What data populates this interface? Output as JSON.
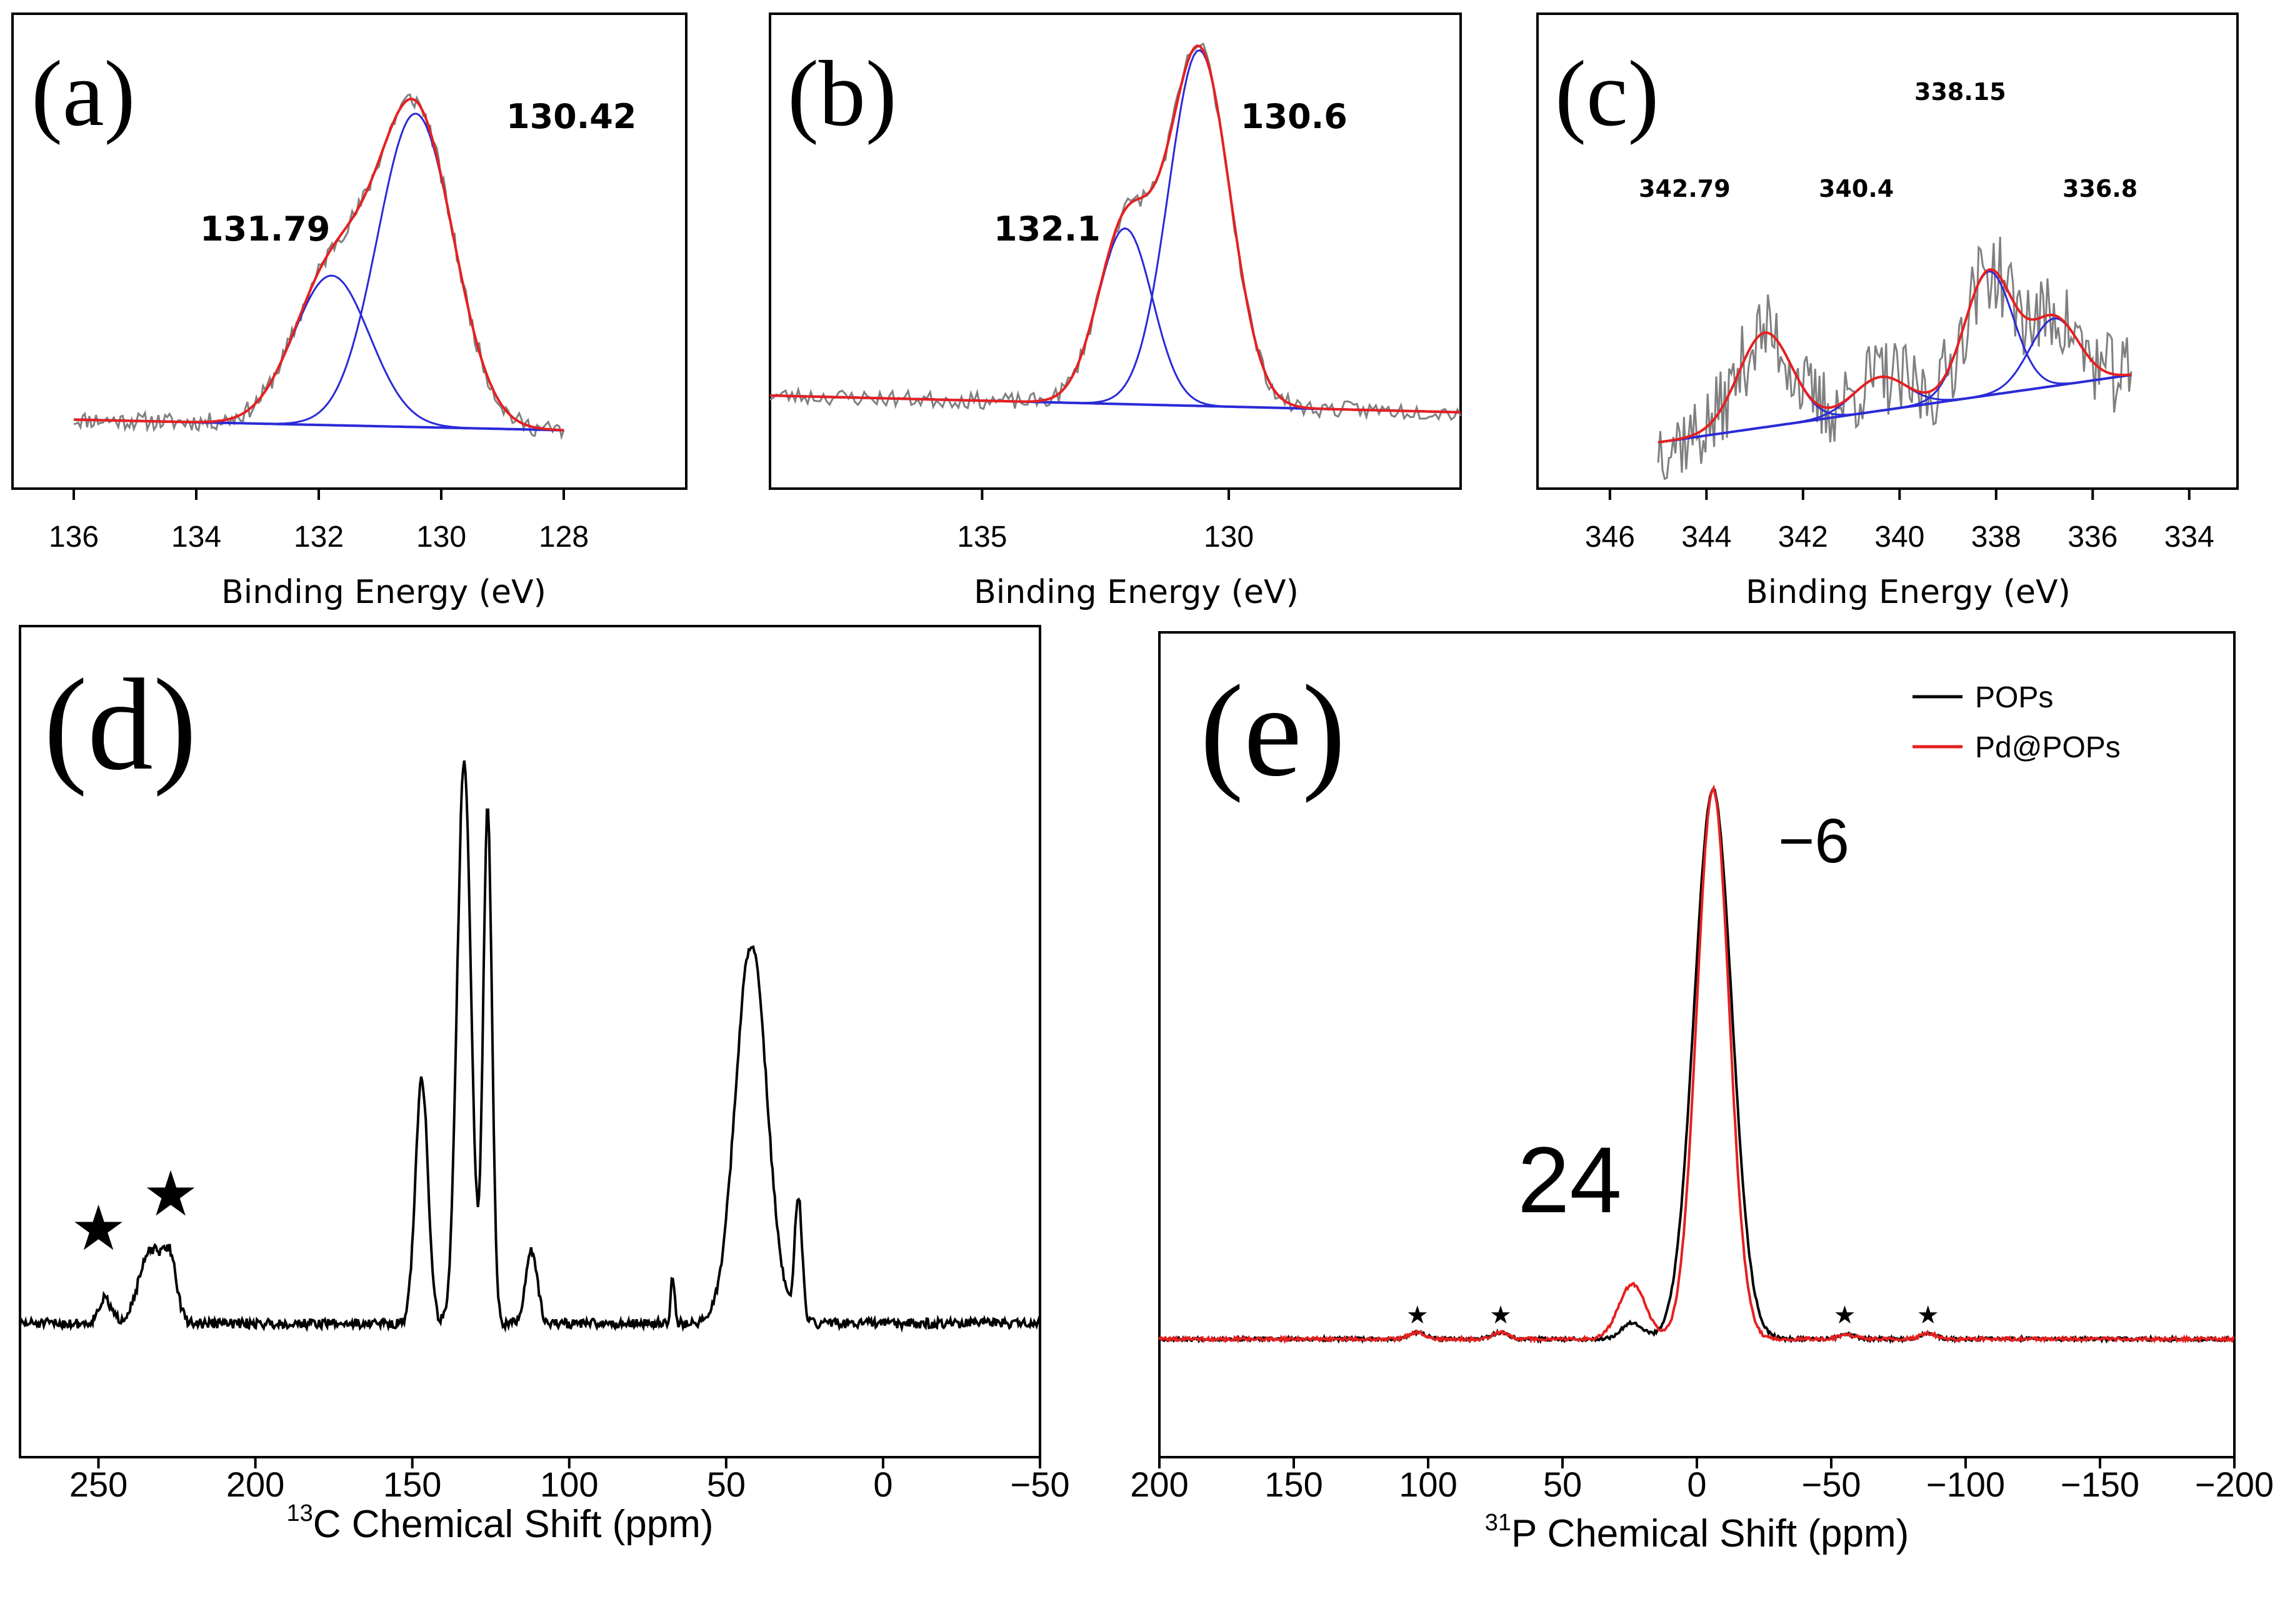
{
  "figure": {
    "background": "#ffffff"
  },
  "colors": {
    "raw": "#808080",
    "fit": "#2a2ad8",
    "envelope": "#e62020",
    "black": "#000000",
    "red": "#e62020"
  },
  "chart_data": [
    {
      "id": "a",
      "panel_label": "(a)",
      "type": "line",
      "xlabel": "Binding Energy (eV)",
      "ylabel": "",
      "xlim": [
        137,
        126
      ],
      "xticks": [
        136,
        134,
        132,
        130,
        128
      ],
      "tick_labels": [
        "136",
        "134",
        "132",
        "130",
        "128"
      ],
      "x_range": [
        136,
        128
      ],
      "baseline": [
        0.05,
        0.02
      ],
      "components": [
        {
          "center": 131.79,
          "height": 0.42,
          "sigma": 0.62
        },
        {
          "center": 130.42,
          "height": 0.88,
          "sigma": 0.62
        }
      ],
      "noise": 0.025,
      "annotations": [
        {
          "text": "131.79",
          "x": 131.79
        },
        {
          "text": "130.42",
          "x": 130.42
        }
      ]
    },
    {
      "id": "b",
      "panel_label": "(b)",
      "type": "line",
      "xlabel": "Binding Energy (eV)",
      "ylabel": "",
      "xlim": [
        139.3,
        125.3
      ],
      "xticks": [
        135,
        130
      ],
      "tick_labels": [
        "135",
        "130"
      ],
      "x_range": [
        139.3,
        125.3
      ],
      "baseline": [
        0.1,
        0.06
      ],
      "components": [
        {
          "center": 132.1,
          "height": 0.42,
          "sigma": 0.55
        },
        {
          "center": 130.6,
          "height": 0.85,
          "sigma": 0.62
        }
      ],
      "noise": 0.02,
      "annotations": [
        {
          "text": "132.1",
          "x": 132.1
        },
        {
          "text": "130.6",
          "x": 130.6
        }
      ]
    },
    {
      "id": "c",
      "panel_label": "(c)",
      "type": "line",
      "xlabel": "Binding Energy (eV)",
      "ylabel": "",
      "xlim": [
        347.5,
        333
      ],
      "xticks": [
        346,
        344,
        342,
        340,
        338,
        336,
        334
      ],
      "tick_labels": [
        "346",
        "344",
        "342",
        "340",
        "338",
        "336",
        "334"
      ],
      "x_range": [
        345,
        335.2
      ],
      "baseline": [
        0.2,
        0.5
      ],
      "components": [
        {
          "center": 342.79,
          "height": 0.42,
          "sigma": 0.55
        },
        {
          "center": 340.4,
          "height": 0.15,
          "sigma": 0.55
        },
        {
          "center": 338.15,
          "height": 0.55,
          "sigma": 0.5
        },
        {
          "center": 336.8,
          "height": 0.3,
          "sigma": 0.5
        }
      ],
      "noise": 0.18,
      "annotations": [
        {
          "text": "342.79",
          "x": 342.79
        },
        {
          "text": "340.4",
          "x": 340.4
        },
        {
          "text": "338.15",
          "x": 338.15
        },
        {
          "text": "336.8",
          "x": 336.8
        }
      ]
    },
    {
      "id": "d",
      "panel_label": "(d)",
      "type": "line",
      "xlabel_sup": "13",
      "xlabel": "C Chemical Shift (ppm)",
      "ylabel": "",
      "xlim": [
        275,
        -50
      ],
      "xticks": [
        250,
        200,
        150,
        100,
        50,
        0,
        -50
      ],
      "tick_labels": [
        "250",
        "200",
        "150",
        "100",
        "50",
        "0",
        "−50"
      ],
      "x_range": [
        275,
        -50
      ],
      "series": [
        {
          "name": "13C",
          "peaks": [
            [
              147,
              0.4,
              2
            ],
            [
              133.5,
              0.92,
              2.2
            ],
            [
              126,
              0.84,
              1.4
            ],
            [
              112,
              0.12,
              1.8
            ],
            [
              67,
              0.08,
              0.6
            ],
            [
              42,
              0.62,
              5
            ],
            [
              27,
              0.2,
              1.2
            ],
            [
              233,
              0.12,
              4
            ],
            [
              227,
              0.08,
              2
            ],
            [
              248,
              0.04,
              2
            ]
          ]
        }
      ],
      "noise": 0.008,
      "annotations": [
        {
          "text": "★",
          "x": 250
        },
        {
          "text": "★",
          "x": 227
        }
      ]
    },
    {
      "id": "e",
      "panel_label": "(e)",
      "type": "line",
      "xlabel_sup": "31",
      "xlabel": "P Chemical Shift (ppm)",
      "ylabel": "",
      "xlim": [
        200,
        -200
      ],
      "xticks": [
        200,
        150,
        100,
        50,
        0,
        -50,
        -100,
        -150,
        -200
      ],
      "tick_labels": [
        "200",
        "150",
        "100",
        "50",
        "0",
        "−50",
        "−100",
        "−150",
        "−200"
      ],
      "x_range": [
        200,
        -200
      ],
      "legend": {
        "position": "top-right",
        "entries": [
          {
            "name": "POPs",
            "color": "#000000"
          },
          {
            "name": "Pd@POPs",
            "color": "#e62020"
          }
        ]
      },
      "series": [
        {
          "name": "POPs",
          "color": "#000000",
          "peaks": [
            [
              -6,
              1.0,
              7
            ],
            [
              24,
              0.03,
              4
            ],
            [
              104,
              0.012,
              3
            ],
            [
              73,
              0.012,
              3
            ],
            [
              -56,
              0.008,
              3
            ],
            [
              -86,
              0.01,
              3
            ]
          ]
        },
        {
          "name": "Pd@POPs",
          "color": "#e62020",
          "peaks": [
            [
              -6,
              1.0,
              6
            ],
            [
              24,
              0.1,
              5
            ],
            [
              104,
              0.012,
              3
            ],
            [
              73,
              0.012,
              3
            ],
            [
              -56,
              0.008,
              3
            ],
            [
              -86,
              0.01,
              3
            ]
          ]
        }
      ],
      "noise": 0.003,
      "annotations": [
        {
          "text": "−6",
          "x": -6
        },
        {
          "text": "24",
          "x": 24
        },
        {
          "text": "★",
          "x": 104
        },
        {
          "text": "★",
          "x": 73
        },
        {
          "text": "★",
          "x": -55
        },
        {
          "text": "★",
          "x": -86
        }
      ]
    }
  ]
}
